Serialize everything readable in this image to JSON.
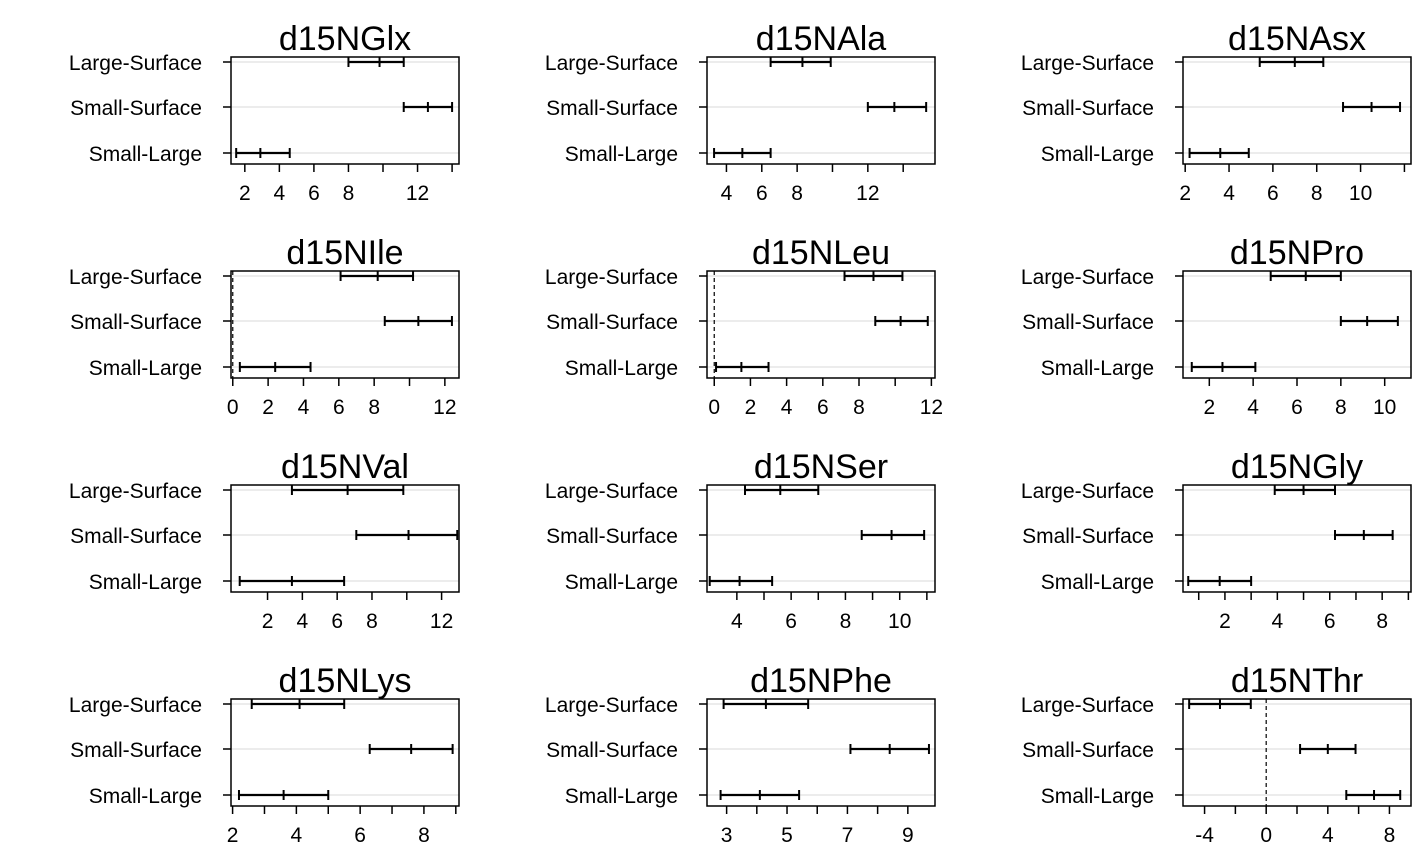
{
  "chart_data": [
    {
      "type": "errorbar",
      "title": "d15NGlx",
      "categories": [
        "Large-Surface",
        "Small-Surface",
        "Small-Large"
      ],
      "xlim": [
        1.2,
        14.4
      ],
      "xticks": [
        2,
        4,
        6,
        8,
        10,
        12,
        14
      ],
      "xtick_labels": [
        "2",
        "4",
        "6",
        "8",
        "",
        "12",
        ""
      ],
      "zero_line": false,
      "intervals": [
        {
          "category": "Large-Surface",
          "low": 8.0,
          "estimate": 9.8,
          "high": 11.2
        },
        {
          "category": "Small-Surface",
          "low": 11.2,
          "estimate": 12.6,
          "high": 14.0
        },
        {
          "category": "Small-Large",
          "low": 1.5,
          "estimate": 2.9,
          "high": 4.6
        }
      ]
    },
    {
      "type": "errorbar",
      "title": "d15NAla",
      "categories": [
        "Large-Surface",
        "Small-Surface",
        "Small-Large"
      ],
      "xlim": [
        2.9,
        15.8
      ],
      "xticks": [
        4,
        6,
        8,
        10,
        12,
        14
      ],
      "xtick_labels": [
        "4",
        "6",
        "8",
        "",
        "12",
        ""
      ],
      "zero_line": false,
      "intervals": [
        {
          "category": "Large-Surface",
          "low": 6.5,
          "estimate": 8.3,
          "high": 9.9
        },
        {
          "category": "Small-Surface",
          "low": 12.0,
          "estimate": 13.5,
          "high": 15.3
        },
        {
          "category": "Small-Large",
          "low": 3.3,
          "estimate": 4.9,
          "high": 6.5
        }
      ]
    },
    {
      "type": "errorbar",
      "title": "d15NAsx",
      "categories": [
        "Large-Surface",
        "Small-Surface",
        "Small-Large"
      ],
      "xlim": [
        1.9,
        12.3
      ],
      "xticks": [
        2,
        4,
        6,
        8,
        10,
        12
      ],
      "xtick_labels": [
        "2",
        "4",
        "6",
        "8",
        "10",
        ""
      ],
      "zero_line": false,
      "intervals": [
        {
          "category": "Large-Surface",
          "low": 5.4,
          "estimate": 7.0,
          "high": 8.3
        },
        {
          "category": "Small-Surface",
          "low": 9.2,
          "estimate": 10.5,
          "high": 11.8
        },
        {
          "category": "Small-Large",
          "low": 2.2,
          "estimate": 3.6,
          "high": 4.9
        }
      ]
    },
    {
      "type": "errorbar",
      "title": "d15NIle",
      "categories": [
        "Large-Surface",
        "Small-Surface",
        "Small-Large"
      ],
      "xlim": [
        -0.1,
        12.8
      ],
      "xticks": [
        0,
        2,
        4,
        6,
        8,
        10,
        12
      ],
      "xtick_labels": [
        "0",
        "2",
        "4",
        "6",
        "8",
        "",
        "12"
      ],
      "zero_line": true,
      "intervals": [
        {
          "category": "Large-Surface",
          "low": 6.1,
          "estimate": 8.2,
          "high": 10.2
        },
        {
          "category": "Small-Surface",
          "low": 8.6,
          "estimate": 10.5,
          "high": 12.4
        },
        {
          "category": "Small-Large",
          "low": 0.4,
          "estimate": 2.4,
          "high": 4.4
        }
      ]
    },
    {
      "type": "errorbar",
      "title": "d15NLeu",
      "categories": [
        "Large-Surface",
        "Small-Surface",
        "Small-Large"
      ],
      "xlim": [
        -0.4,
        12.2
      ],
      "xticks": [
        0,
        2,
        4,
        6,
        8,
        10,
        12
      ],
      "xtick_labels": [
        "0",
        "2",
        "4",
        "6",
        "8",
        "",
        "12"
      ],
      "zero_line": true,
      "intervals": [
        {
          "category": "Large-Surface",
          "low": 7.2,
          "estimate": 8.8,
          "high": 10.4
        },
        {
          "category": "Small-Surface",
          "low": 8.9,
          "estimate": 10.3,
          "high": 11.8
        },
        {
          "category": "Small-Large",
          "low": 0.1,
          "estimate": 1.5,
          "high": 3.0
        }
      ]
    },
    {
      "type": "errorbar",
      "title": "d15NPro",
      "categories": [
        "Large-Surface",
        "Small-Surface",
        "Small-Large"
      ],
      "xlim": [
        0.8,
        11.2
      ],
      "xticks": [
        2,
        4,
        6,
        8,
        10
      ],
      "xtick_labels": [
        "2",
        "4",
        "6",
        "8",
        "10"
      ],
      "zero_line": false,
      "intervals": [
        {
          "category": "Large-Surface",
          "low": 4.8,
          "estimate": 6.4,
          "high": 8.0
        },
        {
          "category": "Small-Surface",
          "low": 8.0,
          "estimate": 9.2,
          "high": 10.6
        },
        {
          "category": "Small-Large",
          "low": 1.2,
          "estimate": 2.6,
          "high": 4.1
        }
      ]
    },
    {
      "type": "errorbar",
      "title": "d15NVal",
      "categories": [
        "Large-Surface",
        "Small-Surface",
        "Small-Large"
      ],
      "xlim": [
        -0.1,
        13.0
      ],
      "xticks": [
        2,
        4,
        6,
        8,
        10,
        12
      ],
      "xtick_labels": [
        "2",
        "4",
        "6",
        "8",
        "",
        "12"
      ],
      "zero_line": false,
      "intervals": [
        {
          "category": "Large-Surface",
          "low": 3.4,
          "estimate": 6.6,
          "high": 9.8
        },
        {
          "category": "Small-Surface",
          "low": 7.1,
          "estimate": 10.1,
          "high": 12.9
        },
        {
          "category": "Small-Large",
          "low": 0.4,
          "estimate": 3.4,
          "high": 6.4
        }
      ]
    },
    {
      "type": "errorbar",
      "title": "d15NSer",
      "categories": [
        "Large-Surface",
        "Small-Surface",
        "Small-Large"
      ],
      "xlim": [
        2.9,
        11.3
      ],
      "xticks": [
        4,
        5,
        6,
        7,
        8,
        9,
        10,
        11
      ],
      "xtick_labels": [
        "4",
        "",
        "6",
        "",
        "8",
        "",
        "10",
        ""
      ],
      "zero_line": false,
      "intervals": [
        {
          "category": "Large-Surface",
          "low": 4.3,
          "estimate": 5.6,
          "high": 7.0
        },
        {
          "category": "Small-Surface",
          "low": 8.6,
          "estimate": 9.7,
          "high": 10.9
        },
        {
          "category": "Small-Large",
          "low": 3.0,
          "estimate": 4.1,
          "high": 5.3
        }
      ]
    },
    {
      "type": "errorbar",
      "title": "d15NGly",
      "categories": [
        "Large-Surface",
        "Small-Surface",
        "Small-Large"
      ],
      "xlim": [
        0.4,
        9.1
      ],
      "xticks": [
        1,
        2,
        3,
        4,
        5,
        6,
        7,
        8,
        9
      ],
      "xtick_labels": [
        "",
        "2",
        "",
        "4",
        "",
        "6",
        "",
        "8",
        ""
      ],
      "zero_line": false,
      "intervals": [
        {
          "category": "Large-Surface",
          "low": 3.9,
          "estimate": 5.0,
          "high": 6.2
        },
        {
          "category": "Small-Surface",
          "low": 6.2,
          "estimate": 7.3,
          "high": 8.4
        },
        {
          "category": "Small-Large",
          "low": 0.6,
          "estimate": 1.8,
          "high": 3.0
        }
      ]
    },
    {
      "type": "errorbar",
      "title": "d15NLys",
      "categories": [
        "Large-Surface",
        "Small-Surface",
        "Small-Large"
      ],
      "xlim": [
        1.95,
        9.1
      ],
      "xticks": [
        2,
        3,
        4,
        5,
        6,
        7,
        8,
        9
      ],
      "xtick_labels": [
        "2",
        "",
        "4",
        "",
        "6",
        "",
        "8",
        ""
      ],
      "zero_line": false,
      "intervals": [
        {
          "category": "Large-Surface",
          "low": 2.6,
          "estimate": 4.1,
          "high": 5.5
        },
        {
          "category": "Small-Surface",
          "low": 6.3,
          "estimate": 7.6,
          "high": 8.9
        },
        {
          "category": "Small-Large",
          "low": 2.2,
          "estimate": 3.6,
          "high": 5.0
        }
      ]
    },
    {
      "type": "errorbar",
      "title": "d15NPhe",
      "categories": [
        "Large-Surface",
        "Small-Surface",
        "Small-Large"
      ],
      "xlim": [
        2.35,
        9.9
      ],
      "xticks": [
        3,
        4,
        5,
        6,
        7,
        8,
        9
      ],
      "xtick_labels": [
        "3",
        "",
        "5",
        "",
        "7",
        "",
        "9"
      ],
      "zero_line": false,
      "intervals": [
        {
          "category": "Large-Surface",
          "low": 2.9,
          "estimate": 4.3,
          "high": 5.7
        },
        {
          "category": "Small-Surface",
          "low": 7.1,
          "estimate": 8.4,
          "high": 9.7
        },
        {
          "category": "Small-Large",
          "low": 2.8,
          "estimate": 4.1,
          "high": 5.4
        }
      ]
    },
    {
      "type": "errorbar",
      "title": "d15NThr",
      "categories": [
        "Large-Surface",
        "Small-Surface",
        "Small-Large"
      ],
      "xlim": [
        -5.4,
        9.4
      ],
      "xticks": [
        -4,
        -2,
        0,
        2,
        4,
        6,
        8
      ],
      "xtick_labels": [
        "-4",
        "",
        "0",
        "",
        "4",
        "",
        "8"
      ],
      "zero_line": true,
      "intervals": [
        {
          "category": "Large-Surface",
          "low": -5.0,
          "estimate": -3.0,
          "high": -1.0
        },
        {
          "category": "Small-Surface",
          "low": 2.2,
          "estimate": 4.0,
          "high": 5.8
        },
        {
          "category": "Small-Large",
          "low": 5.2,
          "estimate": 7.0,
          "high": 8.7
        }
      ]
    }
  ]
}
